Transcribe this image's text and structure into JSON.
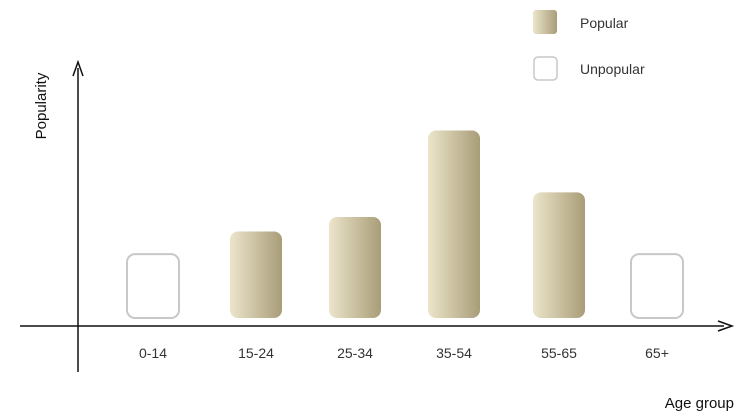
{
  "chart_data": {
    "type": "bar",
    "title": "",
    "xlabel": "Age group",
    "ylabel": "Popularity",
    "categories": [
      "0-14",
      "15-24",
      "25-34",
      "35-54",
      "55-65",
      "65+"
    ],
    "values": [
      0.31,
      0.42,
      0.49,
      0.91,
      0.61,
      0.31
    ],
    "status": [
      "unpopular",
      "popular",
      "popular",
      "popular",
      "popular",
      "unpopular"
    ],
    "ylim": [
      0,
      1
    ],
    "grid": false,
    "legend": {
      "placement": "top-right",
      "items": [
        {
          "key": "popular",
          "label": "Popular",
          "color": "#c8bd9a"
        },
        {
          "key": "unpopular",
          "label": "Unpopular",
          "color": "#ffffff"
        }
      ]
    },
    "colors": {
      "popular_light": "#ece5cb",
      "popular_dark": "#a99d78",
      "unpopular_stroke": "#c8c8c8",
      "axis": "#111111"
    }
  }
}
